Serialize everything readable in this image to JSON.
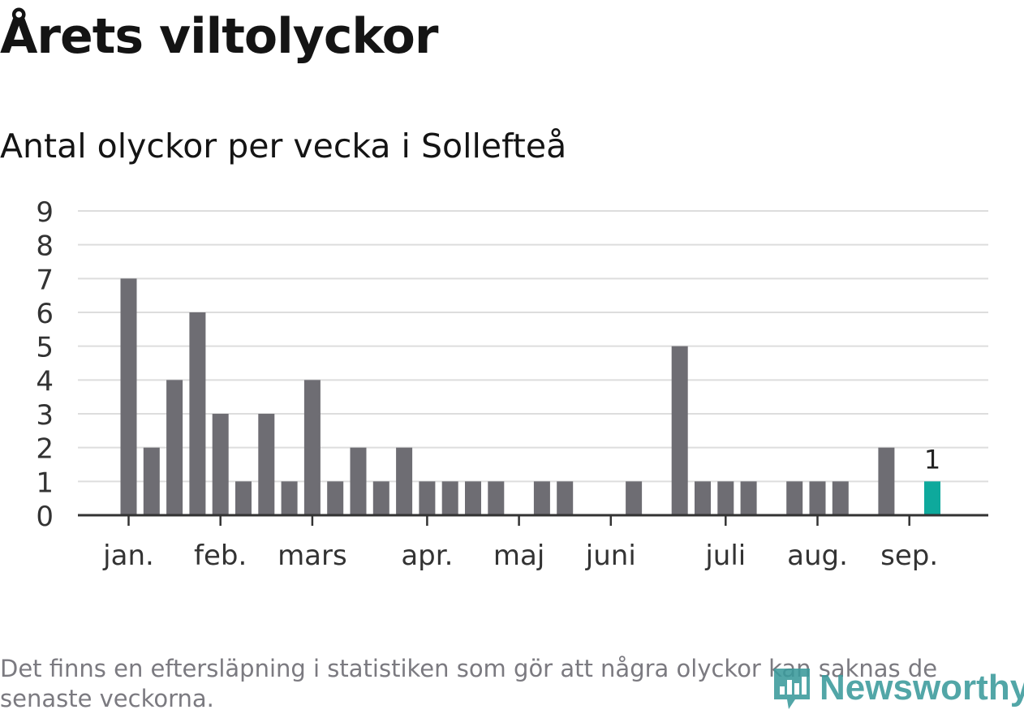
{
  "title": "Årets viltolyckor",
  "subtitle": "Antal olyckor per vecka i Sollefteå",
  "note": "Det finns en eftersläpning i statistiken som gör att några olyckor kan saknas de senaste veckorna.",
  "brand": {
    "name": "Newsworthy",
    "icon": "newsworthy-logo-icon"
  },
  "colors": {
    "bar": "#6e6d73",
    "highlight": "#0ea99c",
    "grid": "#dddddd",
    "axis": "#333333",
    "text": "#333333",
    "brand": "#3b9a9c"
  },
  "chart_data": {
    "type": "bar",
    "ylim": [
      0,
      9
    ],
    "yticks": [
      0,
      1,
      2,
      3,
      4,
      5,
      6,
      7,
      8,
      9
    ],
    "weeks": [
      1,
      2,
      3,
      4,
      5,
      6,
      7,
      8,
      9,
      10,
      11,
      12,
      13,
      14,
      15,
      16,
      17,
      18,
      19,
      20,
      21,
      22,
      23,
      24,
      25,
      26,
      27,
      28,
      29,
      30,
      31,
      32,
      33,
      34,
      35,
      36,
      37
    ],
    "values": [
      7,
      2,
      4,
      6,
      3,
      1,
      3,
      1,
      4,
      1,
      2,
      1,
      2,
      1,
      1,
      1,
      1,
      0,
      1,
      1,
      0,
      0,
      1,
      0,
      5,
      1,
      1,
      1,
      0,
      1,
      1,
      1,
      0,
      2,
      0,
      1,
      0
    ],
    "highlight": {
      "week": 36,
      "label": "1"
    },
    "month_ticks": [
      {
        "label": "jan.",
        "week": 1
      },
      {
        "label": "feb.",
        "week": 5
      },
      {
        "label": "mars",
        "week": 9
      },
      {
        "label": "apr.",
        "week": 14
      },
      {
        "label": "maj",
        "week": 18
      },
      {
        "label": "juni",
        "week": 22
      },
      {
        "label": "juli",
        "week": 27
      },
      {
        "label": "aug.",
        "week": 31
      },
      {
        "label": "sep.",
        "week": 35
      }
    ],
    "grid": true
  }
}
